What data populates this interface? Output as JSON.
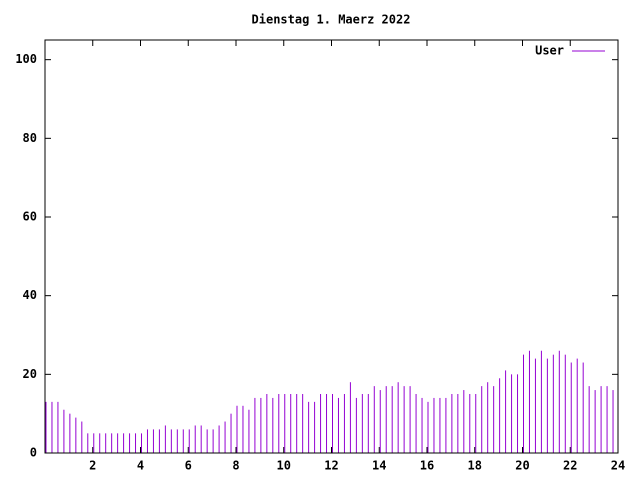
{
  "chart_data": {
    "type": "impulse",
    "title": "Dienstag 1. Maerz 2022",
    "series": [
      {
        "name": "User",
        "color": "#9400d3",
        "values": [
          13,
          13,
          13,
          11,
          10,
          9,
          8,
          5,
          5,
          5,
          5,
          5,
          5,
          5,
          5,
          5,
          5,
          6,
          6,
          6,
          7,
          6,
          6,
          6,
          6,
          7,
          7,
          6,
          6,
          7,
          8,
          10,
          12,
          12,
          11,
          14,
          14,
          15,
          14,
          15,
          15,
          15,
          15,
          15,
          13,
          13,
          15,
          15,
          15,
          14,
          15,
          18,
          14,
          15,
          15,
          17,
          16,
          17,
          17,
          18,
          17,
          17,
          15,
          14,
          13,
          14,
          14,
          14,
          15,
          15,
          16,
          15,
          15,
          17,
          18,
          17,
          19,
          21,
          20,
          20,
          25,
          26,
          24,
          26,
          24,
          25,
          26,
          25,
          23,
          24,
          23,
          17,
          16,
          17,
          17,
          16
        ]
      }
    ],
    "x": [
      0,
      0.25,
      0.5,
      0.75,
      1,
      1.25,
      1.5,
      1.75,
      2,
      2.25,
      2.5,
      2.75,
      3,
      3.25,
      3.5,
      3.75,
      4,
      4.25,
      4.5,
      4.75,
      5,
      5.25,
      5.5,
      5.75,
      6,
      6.25,
      6.5,
      6.75,
      7,
      7.25,
      7.5,
      7.75,
      8,
      8.25,
      8.5,
      8.75,
      9,
      9.25,
      9.5,
      9.75,
      10,
      10.25,
      10.5,
      10.75,
      11,
      11.25,
      11.5,
      11.75,
      12,
      12.25,
      12.5,
      12.75,
      13,
      13.25,
      13.5,
      13.75,
      14,
      14.25,
      14.5,
      14.75,
      15,
      15.25,
      15.5,
      15.75,
      16,
      16.25,
      16.5,
      16.75,
      17,
      17.25,
      17.5,
      17.75,
      18,
      18.25,
      18.5,
      18.75,
      19,
      19.25,
      19.5,
      19.75,
      20,
      20.25,
      20.5,
      20.75,
      21,
      21.25,
      21.5,
      21.75,
      22,
      22.25,
      22.5,
      22.75,
      23,
      23.25,
      23.5,
      23.75
    ],
    "xlim": [
      0,
      24
    ],
    "xticks": [
      2,
      4,
      6,
      8,
      10,
      12,
      14,
      16,
      18,
      20,
      22,
      24
    ],
    "ylim": [
      0,
      105
    ],
    "yticks": [
      0,
      20,
      40,
      60,
      80,
      100
    ],
    "legend": "top-right"
  }
}
